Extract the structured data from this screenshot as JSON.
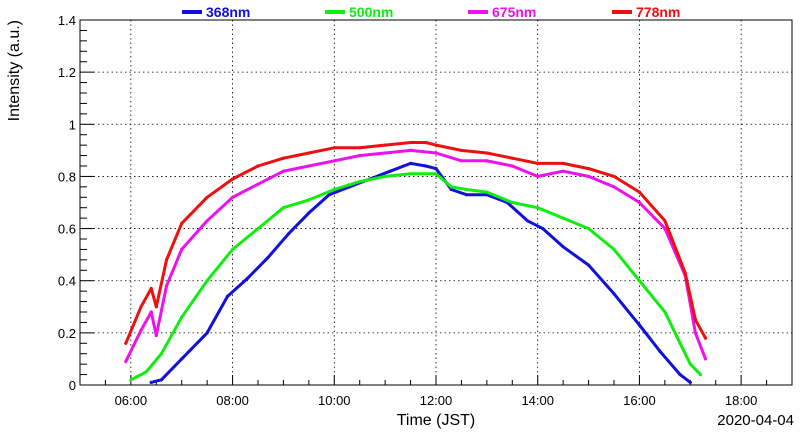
{
  "chart_data": {
    "type": "line",
    "xlabel": "Time (JST)",
    "ylabel": "Intensity (a.u.)",
    "date_label": "2020-04-04",
    "xlim": [
      5.0,
      19.0
    ],
    "ylim": [
      0,
      1.4
    ],
    "x_ticks": [
      {
        "value": 6,
        "label": "06:00"
      },
      {
        "value": 8,
        "label": "08:00"
      },
      {
        "value": 10,
        "label": "10:00"
      },
      {
        "value": 12,
        "label": "12:00"
      },
      {
        "value": 14,
        "label": "14:00"
      },
      {
        "value": 16,
        "label": "16:00"
      },
      {
        "value": 18,
        "label": "18:00"
      }
    ],
    "y_ticks": [
      {
        "value": 0,
        "label": "0"
      },
      {
        "value": 0.2,
        "label": "0.2"
      },
      {
        "value": 0.4,
        "label": "0.4"
      },
      {
        "value": 0.6,
        "label": "0.6"
      },
      {
        "value": 0.8,
        "label": "0.8"
      },
      {
        "value": 1.0,
        "label": "1"
      },
      {
        "value": 1.2,
        "label": "1.2"
      },
      {
        "value": 1.4,
        "label": "1.4"
      }
    ],
    "grid": true,
    "legend_position": "top",
    "series": [
      {
        "name": "368nm",
        "color": "#1010e0",
        "x": [
          6.4,
          6.6,
          7.0,
          7.5,
          7.9,
          8.3,
          8.7,
          9.1,
          9.5,
          9.9,
          10.3,
          10.7,
          11.1,
          11.5,
          11.8,
          12.0,
          12.3,
          12.6,
          13.0,
          13.4,
          13.8,
          14.1,
          14.5,
          15.0,
          15.5,
          16.0,
          16.4,
          16.8,
          17.0
        ],
        "y": [
          0.01,
          0.02,
          0.1,
          0.2,
          0.34,
          0.41,
          0.49,
          0.58,
          0.66,
          0.73,
          0.76,
          0.79,
          0.82,
          0.85,
          0.84,
          0.83,
          0.75,
          0.73,
          0.73,
          0.7,
          0.63,
          0.6,
          0.53,
          0.46,
          0.35,
          0.23,
          0.13,
          0.04,
          0.01
        ]
      },
      {
        "name": "500nm",
        "color": "#10ee10",
        "x": [
          6.0,
          6.3,
          6.6,
          7.0,
          7.5,
          8.0,
          8.5,
          9.0,
          9.5,
          10.0,
          10.5,
          11.0,
          11.5,
          12.0,
          12.3,
          12.6,
          13.0,
          13.5,
          14.0,
          14.5,
          15.0,
          15.5,
          16.0,
          16.5,
          16.8,
          17.0,
          17.2
        ],
        "y": [
          0.02,
          0.05,
          0.12,
          0.26,
          0.4,
          0.52,
          0.6,
          0.68,
          0.71,
          0.75,
          0.78,
          0.8,
          0.81,
          0.81,
          0.76,
          0.75,
          0.74,
          0.7,
          0.68,
          0.64,
          0.6,
          0.52,
          0.4,
          0.28,
          0.16,
          0.08,
          0.04
        ]
      },
      {
        "name": "675nm",
        "color": "#ee10ee",
        "x": [
          5.9,
          6.2,
          6.4,
          6.5,
          6.7,
          7.0,
          7.5,
          8.0,
          8.5,
          9.0,
          9.5,
          10.0,
          10.5,
          11.0,
          11.5,
          12.0,
          12.5,
          13.0,
          13.5,
          14.0,
          14.5,
          15.0,
          15.5,
          16.0,
          16.5,
          16.9,
          17.1,
          17.3
        ],
        "y": [
          0.09,
          0.21,
          0.28,
          0.19,
          0.38,
          0.52,
          0.63,
          0.72,
          0.77,
          0.82,
          0.84,
          0.86,
          0.88,
          0.89,
          0.9,
          0.89,
          0.86,
          0.86,
          0.84,
          0.8,
          0.82,
          0.8,
          0.76,
          0.7,
          0.6,
          0.42,
          0.2,
          0.1
        ]
      },
      {
        "name": "778nm",
        "color": "#ee1010",
        "x": [
          5.9,
          6.2,
          6.4,
          6.5,
          6.7,
          7.0,
          7.5,
          8.0,
          8.5,
          9.0,
          9.5,
          10.0,
          10.5,
          11.0,
          11.5,
          11.8,
          12.0,
          12.5,
          13.0,
          13.5,
          14.0,
          14.5,
          15.0,
          15.5,
          16.0,
          16.5,
          16.9,
          17.1,
          17.3
        ],
        "y": [
          0.16,
          0.3,
          0.37,
          0.3,
          0.48,
          0.62,
          0.72,
          0.79,
          0.84,
          0.87,
          0.89,
          0.91,
          0.91,
          0.92,
          0.93,
          0.93,
          0.92,
          0.9,
          0.89,
          0.87,
          0.85,
          0.85,
          0.83,
          0.8,
          0.74,
          0.63,
          0.43,
          0.25,
          0.18
        ]
      }
    ]
  }
}
